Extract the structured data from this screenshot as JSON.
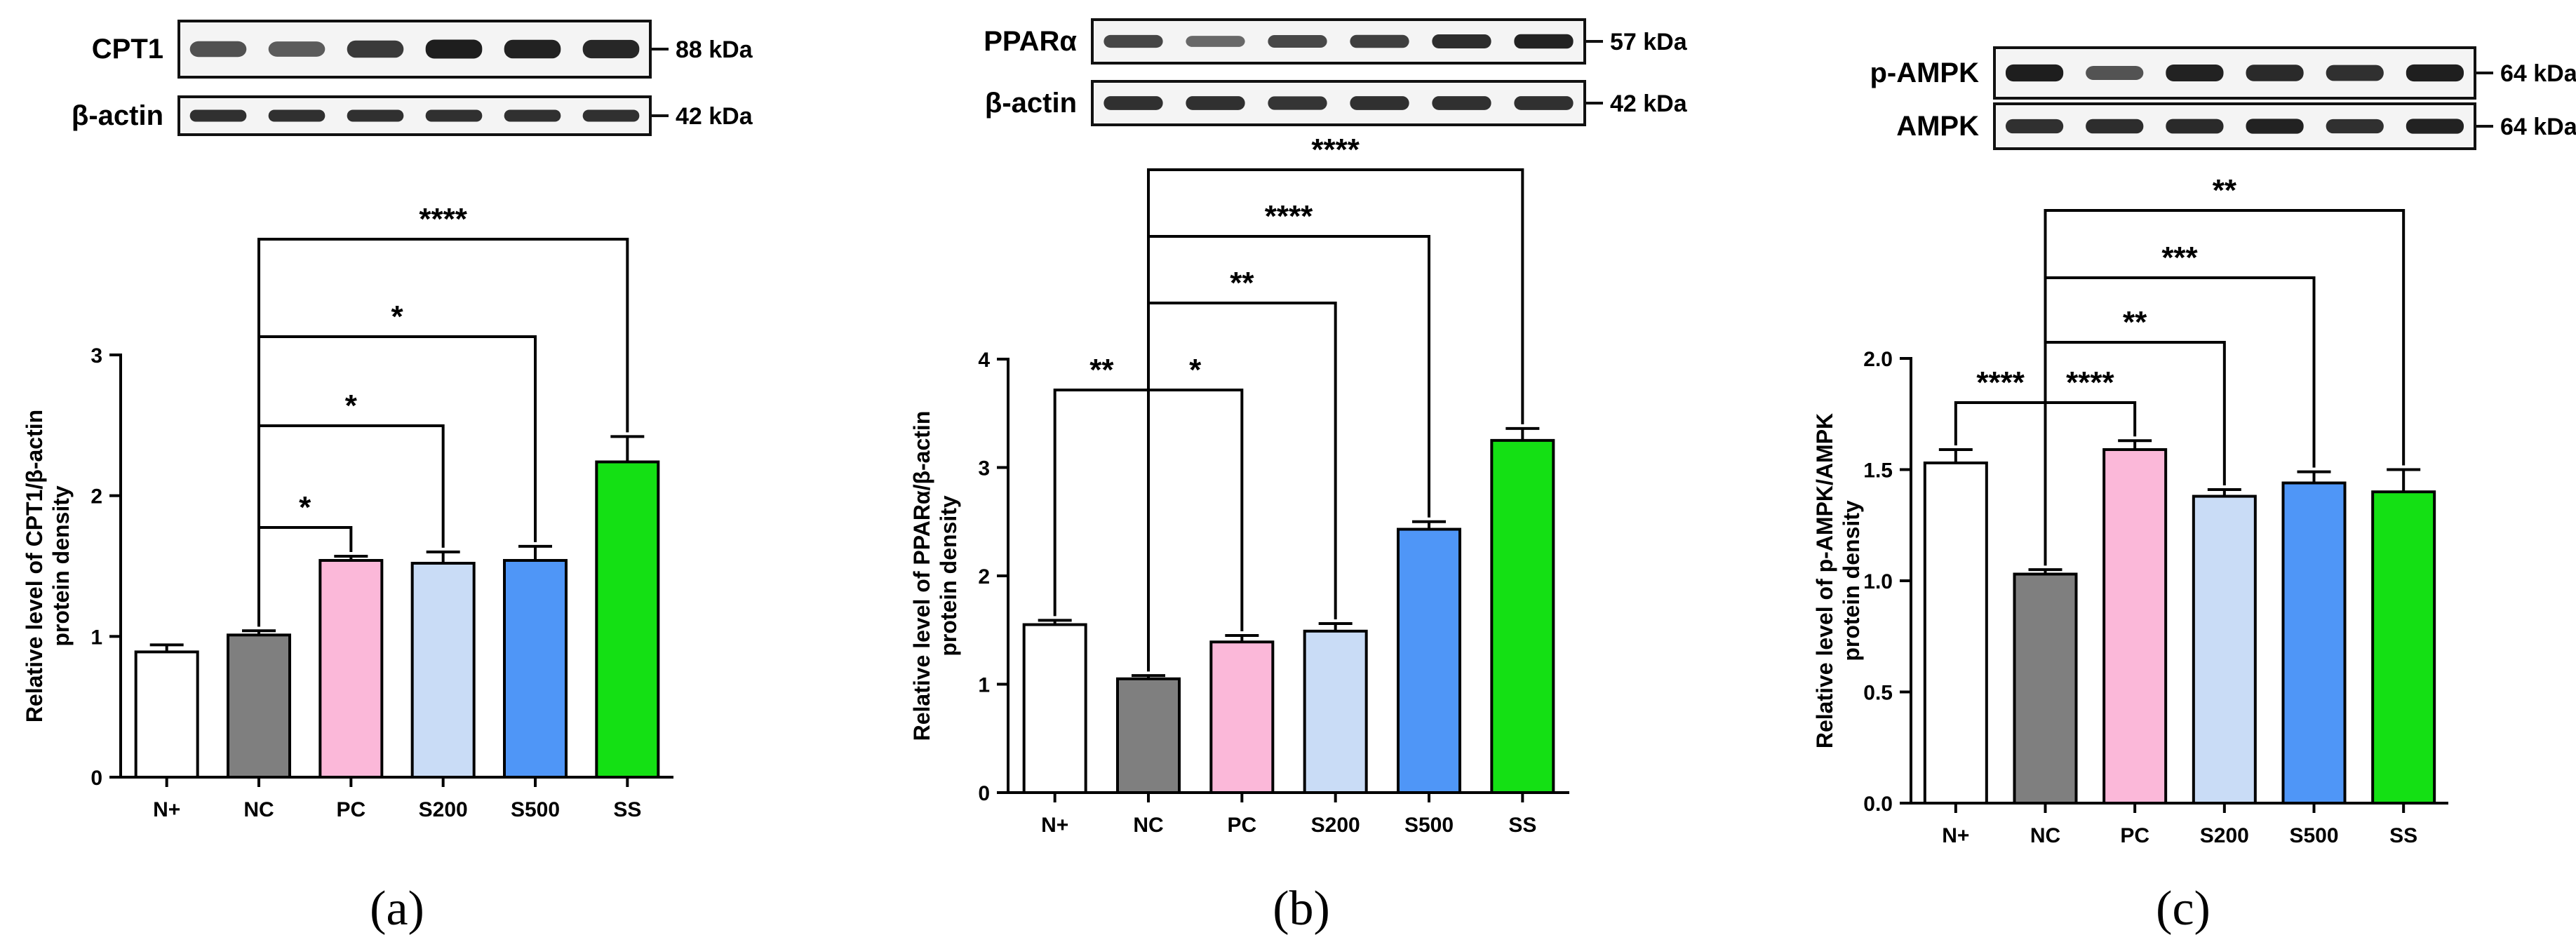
{
  "colors": {
    "N+": "#ffffff",
    "NC": "#7f7f7f",
    "PC": "#fbb8d9",
    "S200": "#c9dcf6",
    "S500": "#4f96f7",
    "SS": "#14e014",
    "band": "#1b1b1b",
    "blot_bg": "#f4f4f4"
  },
  "chart_data": [
    {
      "type": "bar",
      "panel_label": "(a)",
      "categories": [
        "N+",
        "NC",
        "PC",
        "S200",
        "S500",
        "SS"
      ],
      "ylabel_lines": [
        "Relative level of CPT1/β-actin",
        "protein density"
      ],
      "ylim": [
        0,
        3
      ],
      "yticks": [
        0,
        1,
        2,
        3
      ],
      "tick_decimals": 0,
      "values": [
        0.89,
        1.01,
        1.54,
        1.52,
        1.54,
        2.24
      ],
      "errors": [
        0.05,
        0.03,
        0.03,
        0.08,
        0.1,
        0.18
      ],
      "blots": [
        {
          "label": "CPT1",
          "kda": "88 kDa",
          "intensities": [
            0.62,
            0.55,
            0.78,
            0.98,
            0.95,
            0.92
          ]
        },
        {
          "label": "β-actin",
          "kda": "42 kDa",
          "intensities": [
            0.85,
            0.85,
            0.85,
            0.85,
            0.85,
            0.85
          ]
        }
      ],
      "brackets": [
        {
          "from": "NC",
          "to": "PC",
          "label": "*"
        },
        {
          "from": "NC",
          "to": "S200",
          "label": "*"
        },
        {
          "from": "NC",
          "to": "S500",
          "label": "*"
        },
        {
          "from": "NC",
          "to": "SS",
          "label": "****"
        }
      ]
    },
    {
      "type": "bar",
      "panel_label": "(b)",
      "categories": [
        "N+",
        "NC",
        "PC",
        "S200",
        "S500",
        "SS"
      ],
      "ylabel_lines": [
        "Relative level of PPARα/β-actin",
        "protein density"
      ],
      "ylim": [
        0,
        4
      ],
      "yticks": [
        0,
        1,
        2,
        3,
        4
      ],
      "tick_decimals": 0,
      "values": [
        1.55,
        1.05,
        1.39,
        1.49,
        2.43,
        3.25
      ],
      "errors": [
        0.04,
        0.03,
        0.06,
        0.07,
        0.07,
        0.11
      ],
      "blots": [
        {
          "label": "PPARα",
          "kda": "57 kDa",
          "intensities": [
            0.7,
            0.45,
            0.68,
            0.74,
            0.88,
            0.95
          ]
        },
        {
          "label": "β-actin",
          "kda": "42 kDa",
          "intensities": [
            0.85,
            0.85,
            0.82,
            0.85,
            0.85,
            0.85
          ]
        }
      ],
      "brackets": [
        {
          "from": "N+",
          "to": "NC",
          "label": "**"
        },
        {
          "from": "NC",
          "to": "PC",
          "label": "*"
        },
        {
          "from": "NC",
          "to": "S200",
          "label": "**"
        },
        {
          "from": "NC",
          "to": "S500",
          "label": "****"
        },
        {
          "from": "NC",
          "to": "SS",
          "label": "****"
        }
      ]
    },
    {
      "type": "bar",
      "panel_label": "(c)",
      "categories": [
        "N+",
        "NC",
        "PC",
        "S200",
        "S500",
        "SS"
      ],
      "ylabel_lines": [
        "Relative level of p-AMPK/AMPK",
        "protein density"
      ],
      "ylim": [
        0,
        2.0
      ],
      "yticks": [
        0.0,
        0.5,
        1.0,
        1.5,
        2.0
      ],
      "tick_decimals": 1,
      "values": [
        1.53,
        1.03,
        1.59,
        1.38,
        1.44,
        1.4
      ],
      "errors": [
        0.06,
        0.02,
        0.04,
        0.03,
        0.05,
        0.1
      ],
      "blots": [
        {
          "label": "p-AMPK",
          "kda": "64 kDa",
          "intensities": [
            0.98,
            0.6,
            0.95,
            0.9,
            0.85,
            0.97
          ]
        },
        {
          "label": "AMPK",
          "kda": "64 kDa",
          "intensities": [
            0.85,
            0.88,
            0.9,
            0.95,
            0.85,
            0.95
          ]
        }
      ],
      "brackets": [
        {
          "from": "N+",
          "to": "NC",
          "label": "****"
        },
        {
          "from": "NC",
          "to": "PC",
          "label": "****"
        },
        {
          "from": "NC",
          "to": "S200",
          "label": "**"
        },
        {
          "from": "NC",
          "to": "S500",
          "label": "***"
        },
        {
          "from": "NC",
          "to": "SS",
          "label": "**"
        }
      ]
    }
  ]
}
